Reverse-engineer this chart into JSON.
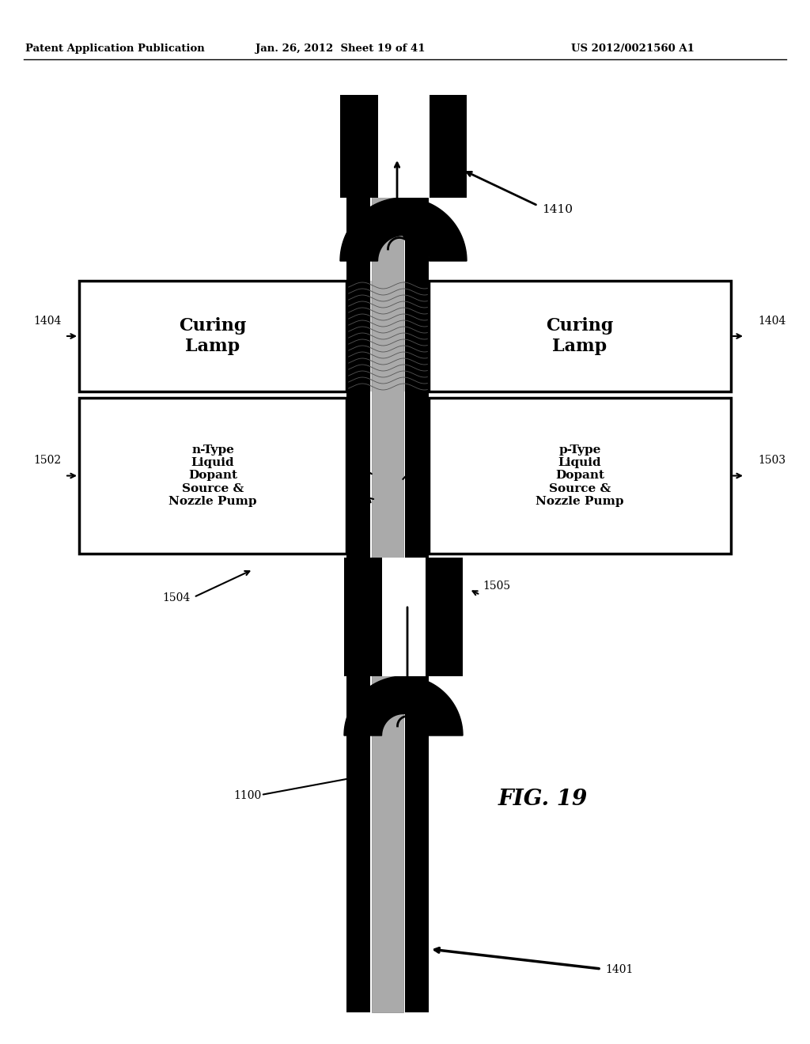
{
  "header_left": "Patent Application Publication",
  "header_mid": "Jan. 26, 2012  Sheet 19 of 41",
  "header_right": "US 2012/0021560 A1",
  "fig_label": "FIG. 19",
  "left_box_text": "n-Type\nLiquid\nDopant\nSource &\nNozzle Pump",
  "right_box_text": "p-Type\nLiquid\nDopant\nSource &\nNozzle Pump",
  "curing_lamp_text": "Curing\nLamp",
  "background_color": "#ffffff",
  "black": "#000000",
  "rod_gray": "#aaaaaa",
  "hatch_gray": "#bbbbbb"
}
